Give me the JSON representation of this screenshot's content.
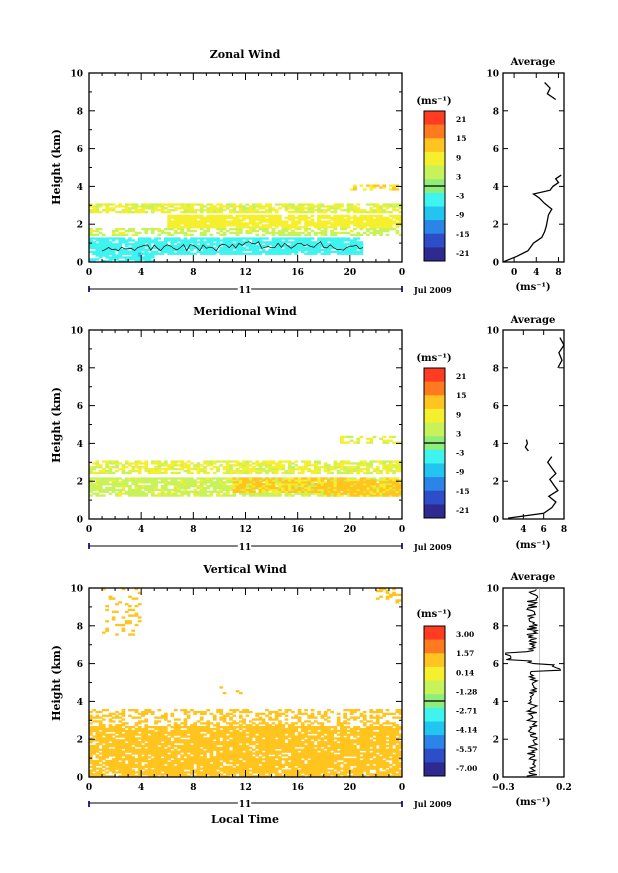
{
  "chart_data": [
    {
      "type": "heatmap",
      "title": "Zonal Wind",
      "ylabel": "Height (km)",
      "xlabel": "",
      "x_ticks": [
        "0",
        "4",
        "8",
        "12",
        "16",
        "20",
        "0"
      ],
      "y_ticks": [
        "0",
        "2",
        "4",
        "6",
        "8",
        "10"
      ],
      "xlim": [
        0,
        24
      ],
      "ylim": [
        0,
        10
      ],
      "date_label": "11",
      "month_year": "Jul 2009",
      "colorbar": {
        "unit": "(ms⁻¹)",
        "ticks": [
          "21",
          "15",
          "9",
          "3",
          "-3",
          "-9",
          "-15",
          "-21"
        ]
      },
      "regions": [
        {
          "x": [
            0,
            24
          ],
          "y": [
            2.6,
            3.1
          ],
          "value": 6,
          "density": 0.75
        },
        {
          "x": [
            6,
            24
          ],
          "y": [
            1.8,
            2.5
          ],
          "value": 8,
          "density": 0.85
        },
        {
          "x": [
            0,
            24
          ],
          "y": [
            1.4,
            1.8
          ],
          "value": 5,
          "density": 0.55
        },
        {
          "x": [
            0,
            21
          ],
          "y": [
            0.4,
            1.3
          ],
          "value": -4,
          "density": 0.85
        },
        {
          "x": [
            0,
            5
          ],
          "y": [
            0.0,
            0.5
          ],
          "value": -5,
          "density": 0.7
        },
        {
          "x": [
            20,
            24
          ],
          "y": [
            3.8,
            4.1
          ],
          "value": 10,
          "density": 0.45
        }
      ],
      "average_profile": {
        "title": "Average",
        "xlabel": "(ms⁻¹)",
        "x_ticks": [
          "0",
          "4",
          "8"
        ],
        "xlim": [
          -2,
          9
        ],
        "height": [
          0.0,
          0.3,
          0.6,
          1.0,
          1.3,
          1.6,
          1.9,
          2.2,
          2.5,
          2.8,
          3.1,
          3.4,
          3.6,
          3.8,
          4.0,
          4.2,
          4.4,
          4.6
        ],
        "speed": [
          -2,
          0.5,
          2.5,
          3.5,
          5.0,
          5.5,
          5.8,
          6.0,
          6.2,
          6.8,
          5.5,
          4.5,
          3.5,
          6.5,
          7.0,
          8.0,
          7.5,
          8.5
        ],
        "upper_height": [
          8.6,
          8.9,
          9.2,
          9.5
        ],
        "upper_speed": [
          7.5,
          6.0,
          6.5,
          5.5
        ]
      }
    },
    {
      "type": "heatmap",
      "title": "Meridional Wind",
      "ylabel": "Height (km)",
      "xlabel": "",
      "x_ticks": [
        "0",
        "4",
        "8",
        "12",
        "16",
        "20",
        "0"
      ],
      "y_ticks": [
        "0",
        "2",
        "4",
        "6",
        "8",
        "10"
      ],
      "xlim": [
        0,
        24
      ],
      "ylim": [
        0,
        10
      ],
      "date_label": "11",
      "month_year": "Jul 2009",
      "colorbar": {
        "unit": "(ms⁻¹)",
        "ticks": [
          "21",
          "15",
          "9",
          "3",
          "-3",
          "-9",
          "-15",
          "-21"
        ]
      },
      "regions": [
        {
          "x": [
            0,
            24
          ],
          "y": [
            2.4,
            3.1
          ],
          "value": 6,
          "density": 0.7
        },
        {
          "x": [
            0,
            24
          ],
          "y": [
            1.2,
            2.2
          ],
          "value": 5,
          "density": 0.8
        },
        {
          "x": [
            11,
            24
          ],
          "y": [
            1.4,
            2.2
          ],
          "value": 10,
          "density": 0.75
        },
        {
          "x": [
            18,
            24
          ],
          "y": [
            1.2,
            2.0
          ],
          "value": 11,
          "density": 0.7
        },
        {
          "x": [
            19,
            24
          ],
          "y": [
            4.0,
            4.3
          ],
          "value": 6,
          "density": 0.4
        }
      ],
      "average_profile": {
        "title": "Average",
        "xlabel": "(ms⁻¹)",
        "x_ticks": [
          "4",
          "6",
          "8"
        ],
        "xlim": [
          2,
          8
        ],
        "height": [
          0.05,
          0.3,
          0.6,
          0.9,
          1.2,
          1.5,
          1.8,
          2.1,
          2.4,
          2.7,
          3.0,
          3.3
        ],
        "speed": [
          2.5,
          6.0,
          6.8,
          7.2,
          6.5,
          7.4,
          7.0,
          6.6,
          7.2,
          6.8,
          6.4,
          6.8
        ],
        "mid_height": [
          3.6,
          3.8,
          4.0,
          4.2
        ],
        "mid_speed": [
          4.5,
          4.2,
          4.4,
          4.3
        ],
        "upper_height": [
          8.0,
          8.4,
          8.8,
          9.2,
          9.6
        ],
        "upper_speed": [
          7.4,
          7.8,
          7.5,
          8.0,
          7.6
        ]
      }
    },
    {
      "type": "heatmap",
      "title": "Vertical Wind",
      "ylabel": "Height (km)",
      "xlabel": "Local Time",
      "x_ticks": [
        "0",
        "4",
        "8",
        "12",
        "16",
        "20",
        "0"
      ],
      "y_ticks": [
        "0",
        "2",
        "4",
        "6",
        "8",
        "10"
      ],
      "xlim": [
        0,
        24
      ],
      "ylim": [
        0,
        10
      ],
      "date_label": "11",
      "month_year": "Jul 2009",
      "colorbar": {
        "unit": "(ms⁻¹)",
        "ticks": [
          "3.00",
          "1.57",
          "0.14",
          "-1.28",
          "-2.71",
          "-4.14",
          "-5.57",
          "-7.00"
        ]
      },
      "regions": [
        {
          "x": [
            0,
            24
          ],
          "y": [
            0,
            2.7
          ],
          "value": 0.6,
          "density": 0.85
        },
        {
          "x": [
            0,
            24
          ],
          "y": [
            2.7,
            3.6
          ],
          "value": 0.6,
          "density": 0.4
        },
        {
          "x": [
            1,
            4
          ],
          "y": [
            7.5,
            10
          ],
          "value": 0.6,
          "density": 0.2
        },
        {
          "x": [
            22,
            24
          ],
          "y": [
            9.2,
            10
          ],
          "value": 0.6,
          "density": 0.3
        },
        {
          "x": [
            10,
            12
          ],
          "y": [
            4.4,
            4.7
          ],
          "value": 0.6,
          "density": 0.3
        }
      ],
      "average_profile": {
        "title": "Average",
        "xlabel": "(ms⁻¹)",
        "x_ticks": [
          "−0.3",
          "0.2"
        ],
        "xlim": [
          -0.3,
          0.2
        ],
        "seed": 7
      }
    }
  ]
}
